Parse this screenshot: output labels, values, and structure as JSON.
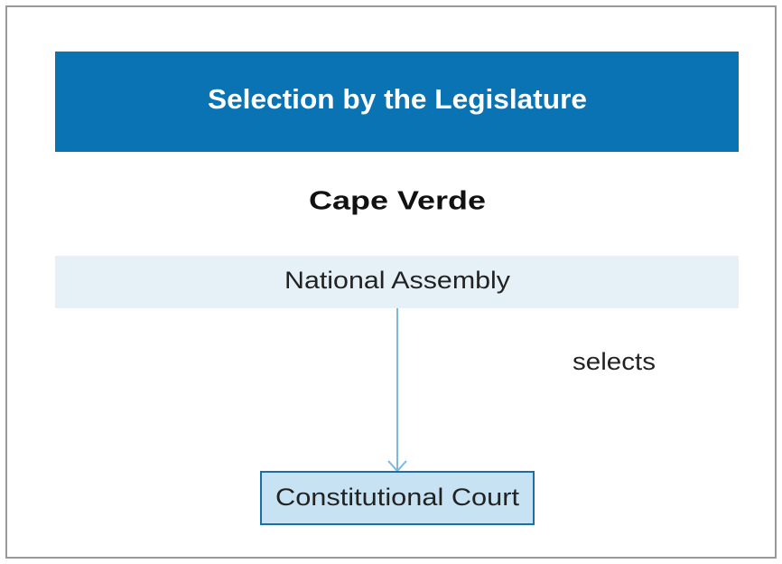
{
  "header": {
    "title": "Selection by the Legislature"
  },
  "subtitle": "Cape Verde",
  "nodes": [
    {
      "label": "National Assembly"
    },
    {
      "label": "Constitutional Court"
    }
  ],
  "edges": [
    {
      "label": "selects"
    }
  ]
}
